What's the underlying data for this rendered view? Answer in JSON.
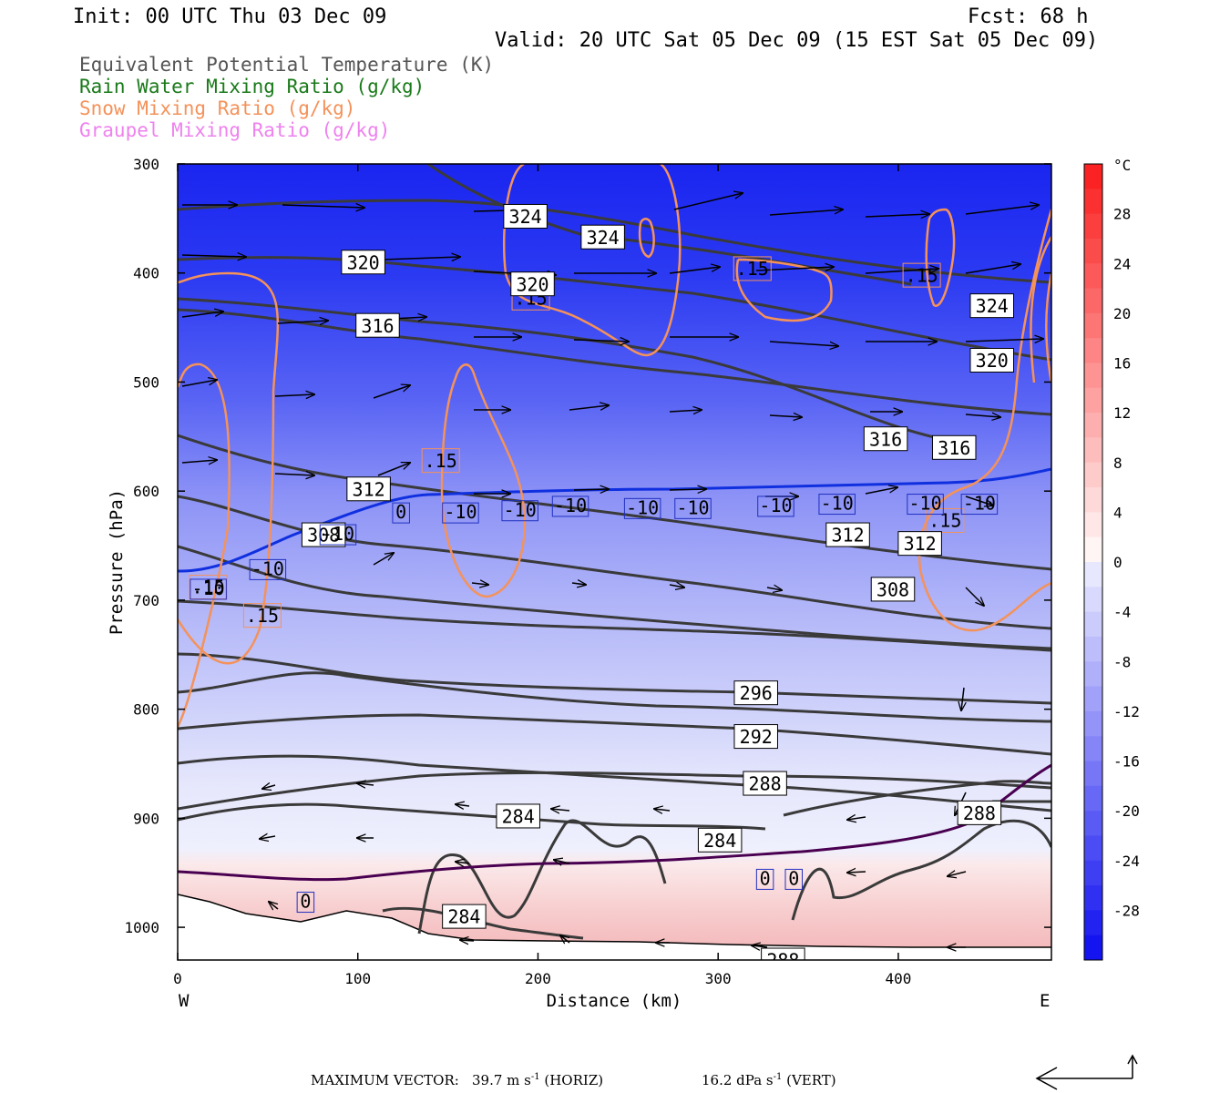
{
  "header": {
    "init": "Init: 00 UTC Thu 03 Dec 09",
    "fcst": "Fcst:   68 h",
    "valid": "Valid: 20 UTC Sat 05 Dec 09 (15 EST Sat 05 Dec 09)"
  },
  "legend": [
    {
      "label": "Equivalent Potential Temperature (K)",
      "color": "#555555"
    },
    {
      "label": "Rain Water Mixing Ratio (g/kg)",
      "color": "#1a7a1a"
    },
    {
      "label": "Snow Mixing Ratio (g/kg)",
      "color": "#f4925a"
    },
    {
      "label": "Graupel Mixing Ratio (g/kg)",
      "color": "#ee82ee"
    }
  ],
  "axes": {
    "ylabel": "Pressure (hPa)",
    "xlabel": "Distance (km)",
    "west": "W",
    "east": "E",
    "yticks": [
      300,
      400,
      500,
      600,
      700,
      800,
      900,
      1000
    ],
    "xticks": [
      0,
      100,
      200,
      300,
      400
    ],
    "x_range": [
      0,
      485
    ],
    "y_range": [
      300,
      1030
    ]
  },
  "colorbar": {
    "unit": "°C",
    "ticks": [
      28,
      24,
      20,
      16,
      12,
      8,
      4,
      0,
      -4,
      -8,
      -12,
      -16,
      -20,
      -24,
      -28
    ]
  },
  "footer": {
    "max_vector": "MAXIMUM VECTOR:",
    "horiz_value": "39.7 m s",
    "horiz_unit": " (HORIZ)",
    "vert_value": "16.2 dPa s",
    "vert_unit": " (VERT)",
    "exp": "-1"
  },
  "chart_data": {
    "type": "contour",
    "theta_e_labels": [
      {
        "value": "324",
        "x": 193,
        "p": 348
      },
      {
        "value": "324",
        "x": 236,
        "p": 367
      },
      {
        "value": "320",
        "x": 103,
        "p": 390
      },
      {
        "value": "320",
        "x": 197,
        "p": 410
      },
      {
        "value": "316",
        "x": 111,
        "p": 448
      },
      {
        "value": "324",
        "x": 452,
        "p": 430
      },
      {
        "value": "320",
        "x": 452,
        "p": 480
      },
      {
        "value": "316",
        "x": 393,
        "p": 552
      },
      {
        "value": "316",
        "x": 431,
        "p": 560
      },
      {
        "value": "312",
        "x": 106,
        "p": 598
      },
      {
        "value": "308",
        "x": 81,
        "p": 640
      },
      {
        "value": "312",
        "x": 372,
        "p": 640
      },
      {
        "value": "312",
        "x": 412,
        "p": 648
      },
      {
        "value": "308",
        "x": 397,
        "p": 690
      },
      {
        "value": "296",
        "x": 321,
        "p": 785
      },
      {
        "value": "292",
        "x": 321,
        "p": 825
      },
      {
        "value": "288",
        "x": 326,
        "p": 868
      },
      {
        "value": "284",
        "x": 189,
        "p": 898
      },
      {
        "value": "288",
        "x": 445,
        "p": 895
      },
      {
        "value": "284",
        "x": 301,
        "p": 920
      },
      {
        "value": "284",
        "x": 159,
        "p": 990
      },
      {
        "value": "288",
        "x": 336,
        "p": 1030
      }
    ],
    "temp_labels": [
      {
        "value": "-10",
        "x": 17,
        "p": 690
      },
      {
        "value": "-10",
        "x": 50,
        "p": 672
      },
      {
        "value": "-10",
        "x": 89,
        "p": 640
      },
      {
        "value": "0",
        "x": 124,
        "p": 620
      },
      {
        "value": "-10",
        "x": 157,
        "p": 620
      },
      {
        "value": "-10",
        "x": 190,
        "p": 618
      },
      {
        "value": "-10",
        "x": 218,
        "p": 614
      },
      {
        "value": "-10",
        "x": 258,
        "p": 616
      },
      {
        "value": "-10",
        "x": 286,
        "p": 616
      },
      {
        "value": "-10",
        "x": 332,
        "p": 614
      },
      {
        "value": "-10",
        "x": 366,
        "p": 612
      },
      {
        "value": "-10",
        "x": 415,
        "p": 612
      },
      {
        "value": "-10",
        "x": 445,
        "p": 612
      },
      {
        "value": "0",
        "x": 71,
        "p": 977
      },
      {
        "value": "0",
        "x": 326,
        "p": 956
      },
      {
        "value": "0",
        "x": 342,
        "p": 956
      }
    ],
    "snow_labels": [
      {
        "value": ".15",
        "x": 196,
        "p": 423
      },
      {
        "value": ".15",
        "x": 319,
        "p": 396
      },
      {
        "value": ".15",
        "x": 413,
        "p": 402
      },
      {
        "value": ".15",
        "x": 146,
        "p": 572
      },
      {
        "value": ".15",
        "x": 426,
        "p": 627
      },
      {
        "value": ".15",
        "x": 17,
        "p": 688
      },
      {
        "value": ".15",
        "x": 47,
        "p": 714
      }
    ]
  }
}
